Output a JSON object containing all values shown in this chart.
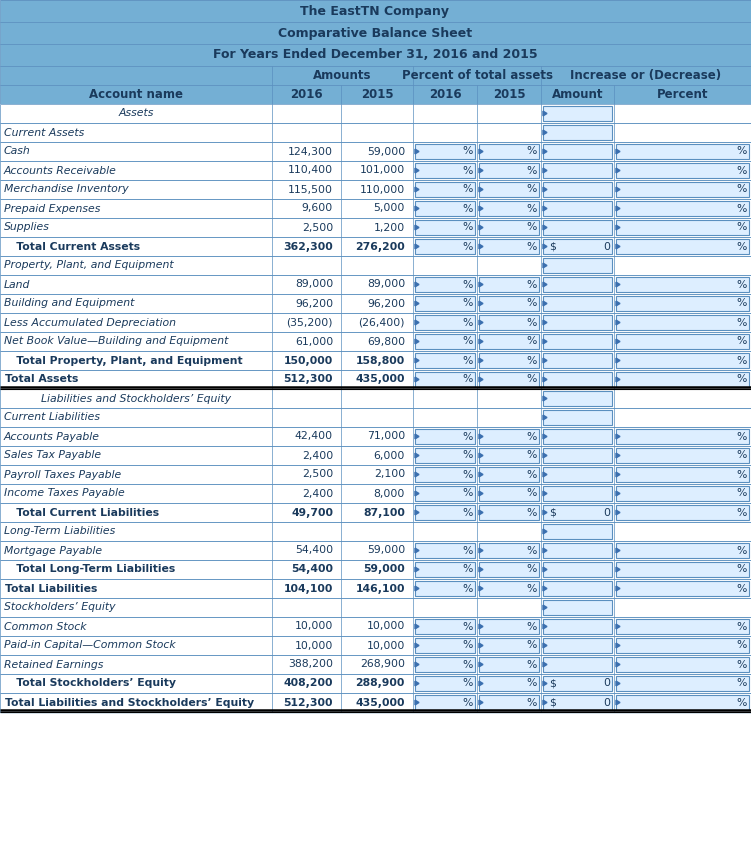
{
  "title1": "The EastTN Company",
  "title2": "Comparative Balance Sheet",
  "title3": "For Years Ended December 31, 2016 and 2015",
  "header_bg": "#74afd4",
  "header_text": "#1a3a5c",
  "white_bg": "#ffffff",
  "input_bg": "#ddeeff",
  "border_color": "#5a8fbf",
  "dark_border": "#2a5a8a",
  "arrow_color": "#3a6faf",
  "rows": [
    {
      "label": "Assets",
      "type": "section_center",
      "v2016": "",
      "v2015": "",
      "has_pct": false,
      "amt": "",
      "has_percent_box": false
    },
    {
      "label": "Current Assets",
      "type": "subsection",
      "v2016": "",
      "v2015": "",
      "has_pct": false,
      "amt": "",
      "has_percent_box": false
    },
    {
      "label": "Cash",
      "type": "data",
      "v2016": "124,300",
      "v2015": "59,000",
      "has_pct": true,
      "amt": "",
      "has_percent_box": true
    },
    {
      "label": "Accounts Receivable",
      "type": "data",
      "v2016": "110,400",
      "v2015": "101,000",
      "has_pct": true,
      "amt": "",
      "has_percent_box": true
    },
    {
      "label": "Merchandise Inventory",
      "type": "data",
      "v2016": "115,500",
      "v2015": "110,000",
      "has_pct": true,
      "amt": "",
      "has_percent_box": true
    },
    {
      "label": "Prepaid Expenses",
      "type": "data",
      "v2016": "9,600",
      "v2015": "5,000",
      "has_pct": true,
      "amt": "",
      "has_percent_box": true
    },
    {
      "label": "Supplies",
      "type": "data",
      "v2016": "2,500",
      "v2015": "1,200",
      "has_pct": true,
      "amt": "",
      "has_percent_box": true
    },
    {
      "label": "   Total Current Assets",
      "type": "total",
      "v2016": "362,300",
      "v2015": "276,200",
      "has_pct": true,
      "amt": "$ 0",
      "has_percent_box": true
    },
    {
      "label": "Property, Plant, and Equipment",
      "type": "subsection",
      "v2016": "",
      "v2015": "",
      "has_pct": false,
      "amt": "",
      "has_percent_box": false
    },
    {
      "label": "Land",
      "type": "data",
      "v2016": "89,000",
      "v2015": "89,000",
      "has_pct": true,
      "amt": "",
      "has_percent_box": true
    },
    {
      "label": "Building and Equipment",
      "type": "data",
      "v2016": "96,200",
      "v2015": "96,200",
      "has_pct": true,
      "amt": "",
      "has_percent_box": true
    },
    {
      "label": "Less Accumulated Depreciation",
      "type": "data",
      "v2016": "(35,200)",
      "v2015": "(26,400)",
      "has_pct": true,
      "amt": "",
      "has_percent_box": true
    },
    {
      "label": "Net Book Value—Building and Equipment",
      "type": "data",
      "v2016": "61,000",
      "v2015": "69,800",
      "has_pct": true,
      "amt": "",
      "has_percent_box": true
    },
    {
      "label": "   Total Property, Plant, and Equipment",
      "type": "total",
      "v2016": "150,000",
      "v2015": "158,800",
      "has_pct": true,
      "amt": "",
      "has_percent_box": true
    },
    {
      "label": "Total Assets",
      "type": "grandtotal",
      "v2016": "512,300",
      "v2015": "435,000",
      "has_pct": true,
      "amt": "",
      "has_percent_box": true
    },
    {
      "label": "   Liabilities and Stockholders’ Equity",
      "type": "section_center",
      "v2016": "",
      "v2015": "",
      "has_pct": false,
      "amt": "",
      "has_percent_box": false
    },
    {
      "label": "Current Liabilities",
      "type": "subsection",
      "v2016": "",
      "v2015": "",
      "has_pct": false,
      "amt": "",
      "has_percent_box": false
    },
    {
      "label": "Accounts Payable",
      "type": "data",
      "v2016": "42,400",
      "v2015": "71,000",
      "has_pct": true,
      "amt": "",
      "has_percent_box": true
    },
    {
      "label": "Sales Tax Payable",
      "type": "data",
      "v2016": "2,400",
      "v2015": "6,000",
      "has_pct": true,
      "amt": "",
      "has_percent_box": true
    },
    {
      "label": "Payroll Taxes Payable",
      "type": "data",
      "v2016": "2,500",
      "v2015": "2,100",
      "has_pct": true,
      "amt": "",
      "has_percent_box": true
    },
    {
      "label": "Income Taxes Payable",
      "type": "data",
      "v2016": "2,400",
      "v2015": "8,000",
      "has_pct": true,
      "amt": "",
      "has_percent_box": true
    },
    {
      "label": "   Total Current Liabilities",
      "type": "total",
      "v2016": "49,700",
      "v2015": "87,100",
      "has_pct": true,
      "amt": "$ 0",
      "has_percent_box": true
    },
    {
      "label": "Long-Term Liabilities",
      "type": "subsection",
      "v2016": "",
      "v2015": "",
      "has_pct": false,
      "amt": "",
      "has_percent_box": false
    },
    {
      "label": "Mortgage Payable",
      "type": "data",
      "v2016": "54,400",
      "v2015": "59,000",
      "has_pct": true,
      "amt": "",
      "has_percent_box": true
    },
    {
      "label": "   Total Long-Term Liabilities",
      "type": "total",
      "v2016": "54,400",
      "v2015": "59,000",
      "has_pct": true,
      "amt": "",
      "has_percent_box": true
    },
    {
      "label": "Total Liabilities",
      "type": "grandtotal2",
      "v2016": "104,100",
      "v2015": "146,100",
      "has_pct": true,
      "amt": "",
      "has_percent_box": true
    },
    {
      "label": "Stockholders’ Equity",
      "type": "subsection",
      "v2016": "",
      "v2015": "",
      "has_pct": false,
      "amt": "",
      "has_percent_box": false
    },
    {
      "label": "Common Stock",
      "type": "data",
      "v2016": "10,000",
      "v2015": "10,000",
      "has_pct": true,
      "amt": "",
      "has_percent_box": true
    },
    {
      "label": "Paid-in Capital—Common Stock",
      "type": "data",
      "v2016": "10,000",
      "v2015": "10,000",
      "has_pct": true,
      "amt": "",
      "has_percent_box": true
    },
    {
      "label": "Retained Earnings",
      "type": "data",
      "v2016": "388,200",
      "v2015": "268,900",
      "has_pct": true,
      "amt": "",
      "has_percent_box": true
    },
    {
      "label": "   Total Stockholders’ Equity",
      "type": "total",
      "v2016": "408,200",
      "v2015": "288,900",
      "has_pct": true,
      "amt": "$ 0",
      "has_percent_box": true
    },
    {
      "label": "Total Liabilities and Stockholders’ Equity",
      "type": "grandtotal",
      "v2016": "512,300",
      "v2015": "435,000",
      "has_pct": true,
      "amt": "$ 0",
      "has_percent_box": true
    }
  ]
}
